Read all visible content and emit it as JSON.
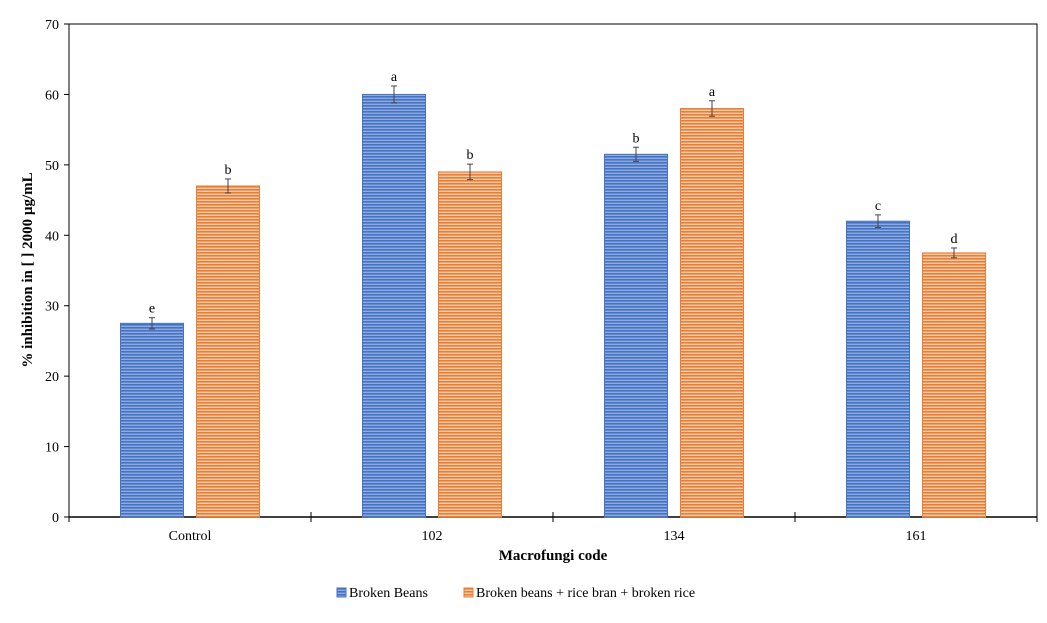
{
  "chart_data": {
    "type": "bar",
    "title": "",
    "xlabel": "Macrofungi code",
    "ylabel": "% inhibition in [ ] 2000 µg/mL",
    "ylim": [
      0,
      70
    ],
    "yticks": [
      0,
      10,
      20,
      30,
      40,
      50,
      60,
      70
    ],
    "categories": [
      "Control",
      "102",
      "134",
      "161"
    ],
    "grid": false,
    "legend": "bottom",
    "series": [
      {
        "name": "Broken Beans",
        "color": "#4472C4",
        "values": [
          27.5,
          60.0,
          51.5,
          42.0
        ],
        "errors": [
          0.8,
          1.2,
          1.0,
          0.9
        ],
        "letters": [
          "e",
          "a",
          "b",
          "c"
        ]
      },
      {
        "name": "Broken beans + rice bran + broken rice",
        "color": "#ED7D31",
        "values": [
          47.0,
          49.0,
          58.0,
          37.5
        ],
        "errors": [
          1.0,
          1.1,
          1.1,
          0.7
        ],
        "letters": [
          "b",
          "b",
          "a",
          "d"
        ]
      }
    ]
  }
}
